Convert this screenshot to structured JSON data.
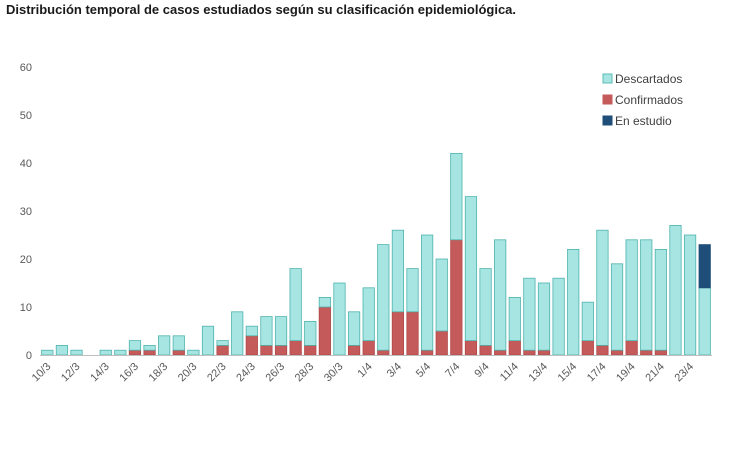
{
  "chart_data": {
    "type": "bar",
    "stacked": true,
    "title": "Distribución temporal de casos estudiados según su  clasificación epidemiológica.",
    "ylim": [
      0,
      60
    ],
    "yticks": [
      0,
      10,
      20,
      30,
      40,
      50,
      60
    ],
    "grid": false,
    "legend_position": "top-right",
    "categories": [
      "10/3",
      "11/3",
      "12/3",
      "13/3",
      "14/3",
      "15/3",
      "16/3",
      "17/3",
      "18/3",
      "19/3",
      "20/3",
      "21/3",
      "22/3",
      "23/3",
      "24/3",
      "25/3",
      "26/3",
      "27/3",
      "28/3",
      "29/3",
      "30/3",
      "31/3",
      "1/4",
      "2/4",
      "3/4",
      "4/4",
      "5/4",
      "6/4",
      "7/4",
      "8/4",
      "9/4",
      "10/4",
      "11/4",
      "12/4",
      "13/4",
      "14/4",
      "15/4",
      "16/4",
      "17/4",
      "18/4",
      "19/4",
      "20/4",
      "21/4",
      "22/4",
      "23/4",
      "24/4"
    ],
    "xtick_labels": [
      "10/3",
      "12/3",
      "14/3",
      "16/3",
      "18/3",
      "20/3",
      "22/3",
      "24/3",
      "26/3",
      "28/3",
      "30/3",
      "1/4",
      "3/4",
      "5/4",
      "7/4",
      "9/4",
      "11/4",
      "13/4",
      "15/4",
      "17/4",
      "19/4",
      "21/4",
      "23/4"
    ],
    "series": [
      {
        "name": "Confirmados",
        "color": "#c55a5a",
        "values": [
          0,
          0,
          0,
          0,
          0,
          0,
          1,
          1,
          0,
          1,
          0,
          0,
          2,
          0,
          4,
          2,
          2,
          3,
          2,
          10,
          0,
          2,
          3,
          1,
          9,
          9,
          1,
          5,
          24,
          3,
          2,
          1,
          3,
          1,
          1,
          0,
          0,
          3,
          2,
          1,
          3,
          1,
          1,
          0,
          0,
          0
        ]
      },
      {
        "name": "Descartados",
        "color": "#a6e5e1",
        "values": [
          1,
          2,
          1,
          0,
          1,
          1,
          2,
          1,
          4,
          3,
          1,
          6,
          1,
          9,
          2,
          6,
          6,
          15,
          5,
          2,
          15,
          7,
          11,
          22,
          17,
          9,
          24,
          15,
          18,
          30,
          16,
          23,
          9,
          15,
          14,
          16,
          22,
          8,
          24,
          18,
          21,
          23,
          21,
          27,
          25,
          14
        ]
      },
      {
        "name": "En estudio",
        "color": "#1f4e79",
        "values": [
          0,
          0,
          0,
          0,
          0,
          0,
          0,
          0,
          0,
          0,
          0,
          0,
          0,
          0,
          0,
          0,
          0,
          0,
          0,
          0,
          0,
          0,
          0,
          0,
          0,
          0,
          0,
          0,
          0,
          0,
          0,
          0,
          0,
          0,
          0,
          0,
          0,
          0,
          0,
          0,
          0,
          0,
          0,
          0,
          0,
          9
        ]
      }
    ],
    "legend": [
      {
        "label": "Descartados",
        "color": "#a6e5e1",
        "stroke": "#5cbcb8"
      },
      {
        "label": "Confirmados",
        "color": "#c55a5a",
        "stroke": "#c55a5a"
      },
      {
        "label": "En estudio",
        "color": "#1f4e79",
        "stroke": "#1f4e79"
      }
    ]
  }
}
